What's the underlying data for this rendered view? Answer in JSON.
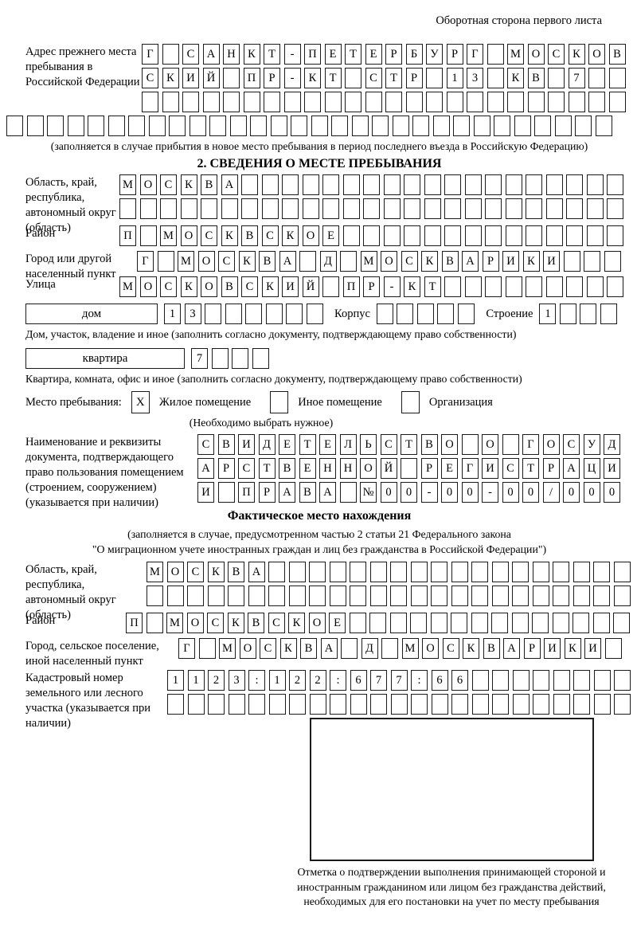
{
  "page": {
    "header_note": "Оборотная сторона первого листа"
  },
  "prev_address": {
    "label": "Адрес прежнего места пребывания в Российской Федерации",
    "rows": [
      {
        "text": "Г САНКТ-ПЕТЕРБУРГ МОСКОВ",
        "count": 24
      },
      {
        "text": "СКИЙ ПР-КТ СТР 13 КВ 7",
        "count": 24
      },
      {
        "text": "",
        "count": 24
      },
      {
        "text": "",
        "count": 30
      }
    ],
    "note": "(заполняется в случае прибытия в новое место пребывания в период последнего въезда в Российскую Федерацию)"
  },
  "section2": {
    "title": "2. СВЕДЕНИЯ О МЕСТЕ ПРЕБЫВАНИЯ",
    "region": {
      "label": "Область, край, республика, автономный округ (область)",
      "rows": [
        {
          "text": "МОСКВА",
          "count": 25
        },
        {
          "text": "",
          "count": 25
        }
      ]
    },
    "district": {
      "label": "Район",
      "row": {
        "text": "П МОСКВСКОЕ",
        "count": 25
      }
    },
    "city": {
      "label": "Город или другой населенный пункт",
      "row": {
        "text": "Г МОСКВА Д МОСКВАРИКИ",
        "count": 24
      }
    },
    "street": {
      "label": "Улица",
      "row": {
        "text": "МОСКОВСКИЙ ПР-КТ",
        "count": 25
      }
    },
    "house": {
      "box_label": "дом",
      "cells": {
        "text": "13",
        "count": 8
      },
      "korpus_label": "Корпус",
      "korpus_cells": {
        "text": "",
        "count": 5
      },
      "stroenie_label": "Строение",
      "stroenie_cells": {
        "text": "1",
        "count": 4
      }
    },
    "house_note": "Дом, участок, владение и иное (заполнить согласно документу, подтверждающему право собственности)",
    "apartment": {
      "box_label": "квартира",
      "cells": {
        "text": "7",
        "count": 4
      }
    },
    "apartment_note": "Квартира, комната, офис и иное (заполнить согласно документу, подтверждающему право собственности)",
    "stay_type": {
      "label": "Место пребывания:",
      "options": [
        {
          "label": "Жилое помещение",
          "checked": "X"
        },
        {
          "label": "Иное помещение",
          "checked": ""
        },
        {
          "label": "Организация",
          "checked": ""
        }
      ],
      "note": "(Необходимо выбрать нужное)"
    },
    "document": {
      "label": "Наименование и реквизиты документа, подтверждающего право пользования помещением (строением, сооружением) (указывается при наличии)",
      "rows": [
        {
          "text": "СВИДЕТЕЛЬСТВО О ГОСУД",
          "count": 21
        },
        {
          "text": "АРСТВЕННОЙ РЕГИСТРАЦИ",
          "count": 21
        },
        {
          "text": "И ПРАВА №00-00-00/000",
          "count": 21
        }
      ]
    }
  },
  "actual_location": {
    "title": "Фактическое место нахождения",
    "note_line1": "(заполняется в случае, предусмотренном частью 2 статьи 21 Федерального закона",
    "note_line2": "\"О миграционном учете иностранных граждан и лиц без гражданства в Российской Федерации\")",
    "region": {
      "label": "Область, край, республика, автономный округ (область)",
      "rows": [
        {
          "text": "МОСКВА",
          "count": 24
        },
        {
          "text": "",
          "count": 24
        }
      ]
    },
    "district": {
      "label": "Район",
      "row": {
        "text": "П МОСКВСКОЕ",
        "count": 25
      }
    },
    "city": {
      "label": "Город, сельское поселение, иной населенный пункт",
      "row": {
        "text": "Г МОСКВА Д МОСКВАРИКИ",
        "count": 22
      }
    },
    "cadastral": {
      "label": "Кадастровый номер земельного или лесного участка (указывается при наличии)",
      "rows": [
        {
          "text": "1123:122:677:66",
          "count": 23
        },
        {
          "text": "",
          "count": 23
        }
      ]
    },
    "mark_box_note": "Отметка о подтверждении выполнения принимающей стороной и иностранным гражданином или лицом без гражданства действий, необходимых для его постановки на учет по месту пребывания"
  }
}
